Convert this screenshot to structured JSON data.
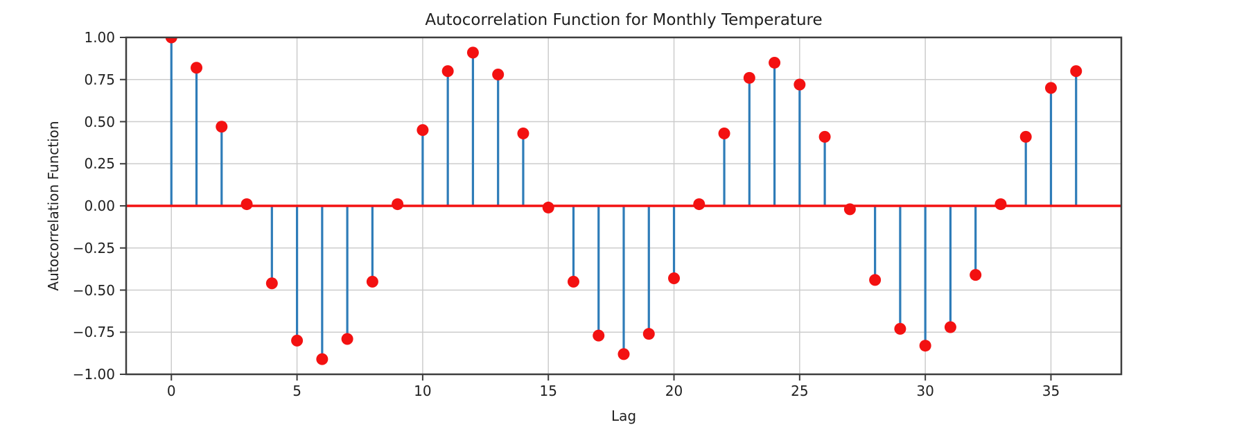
{
  "chart_data": {
    "type": "stem",
    "title": "Autocorrelation Function for Monthly Temperature",
    "xlabel": "Lag",
    "ylabel": "Autocorrelation Function",
    "x": [
      0,
      1,
      2,
      3,
      4,
      5,
      6,
      7,
      8,
      9,
      10,
      11,
      12,
      13,
      14,
      15,
      16,
      17,
      18,
      19,
      20,
      21,
      22,
      23,
      24,
      25,
      26,
      27,
      28,
      29,
      30,
      31,
      32,
      33,
      34,
      35,
      36
    ],
    "values": [
      1.0,
      0.82,
      0.47,
      0.01,
      -0.46,
      -0.8,
      -0.91,
      -0.79,
      -0.45,
      0.01,
      0.45,
      0.8,
      0.91,
      0.78,
      0.43,
      -0.01,
      -0.45,
      -0.77,
      -0.88,
      -0.76,
      -0.43,
      0.01,
      0.43,
      0.76,
      0.85,
      0.72,
      0.41,
      -0.02,
      -0.44,
      -0.73,
      -0.83,
      -0.72,
      -0.41,
      0.01,
      0.41,
      0.7,
      0.8
    ],
    "xlim": [
      -1.8,
      37.8
    ],
    "ylim": [
      -1.0,
      1.0
    ],
    "xticks": [
      0,
      5,
      10,
      15,
      20,
      25,
      30,
      35
    ],
    "xtick_labels": [
      "0",
      "5",
      "10",
      "15",
      "20",
      "25",
      "30",
      "35"
    ],
    "yticks": [
      1.0,
      0.75,
      0.5,
      0.25,
      0.0,
      -0.25,
      -0.5,
      -0.75,
      -1.0
    ],
    "ytick_labels": [
      "1.00",
      "0.75",
      "0.50",
      "0.25",
      "0.00",
      "−0.25",
      "−0.50",
      "−0.75",
      "−1.00"
    ],
    "grid": true,
    "legend": "none",
    "colors": {
      "stem": "#2e7cb8",
      "marker": "#f31111",
      "baseline": "#f31111",
      "grid": "#cccccc",
      "spine": "#3d3d3d",
      "text": "#1f1f1f",
      "background": "#ffffff"
    }
  }
}
